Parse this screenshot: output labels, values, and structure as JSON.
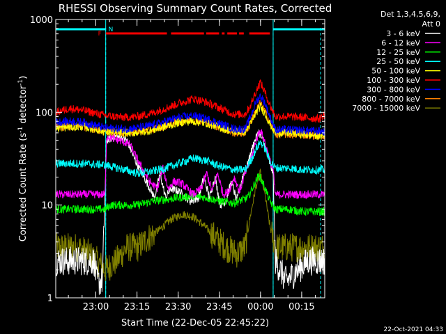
{
  "chart_data": {
    "type": "line",
    "title": "RHESSI Observing Summary Count Rates, Corrected",
    "xlabel": "Start Time (22-Dec-05 22:45:22)",
    "ylabel_main": "Corrected Count Rate (s",
    "ylabel_sup1": "-1",
    "ylabel_mid": " detector",
    "ylabel_sup2": "-1",
    "ylabel_end": ")",
    "footer_date": "22-Oct-2021 04:33",
    "legend_header1": "Det 1,3,4,5,6,9,",
    "legend_header2": "Att 0",
    "x_units": "minutes after 22:45:22",
    "xlim": [
      0,
      98
    ],
    "yscale": "log",
    "ylim": [
      1,
      1000
    ],
    "x_ticks": [
      {
        "x": 14.6,
        "label": "23:00"
      },
      {
        "x": 29.6,
        "label": "23:15"
      },
      {
        "x": 44.6,
        "label": "23:30"
      },
      {
        "x": 59.6,
        "label": "23:45"
      },
      {
        "x": 74.6,
        "label": "00:00"
      },
      {
        "x": 89.6,
        "label": "00:15"
      }
    ],
    "y_ticks": [
      {
        "y": 1,
        "label": "1"
      },
      {
        "y": 10,
        "label": "10"
      },
      {
        "y": 100,
        "label": "100"
      },
      {
        "y": 1000,
        "label": "1000"
      }
    ],
    "night_intervals": [
      [
        0,
        18.2
      ],
      [
        79.2,
        98
      ]
    ],
    "saa_markers": [
      18.2,
      79.2,
      96.5
    ],
    "flags": {
      "N": {
        "label": "N",
        "color": "#00ffff",
        "segments": [
          [
            0,
            18.2
          ],
          [
            79.2,
            98
          ]
        ]
      },
      "F": {
        "label": "F",
        "color": "#ff0000",
        "segments": [
          [
            18.2,
            40.5
          ],
          [
            42,
            54
          ],
          [
            54.8,
            59.5
          ],
          [
            60.5,
            61.5
          ],
          [
            62.5,
            66
          ],
          [
            66.8,
            68.5
          ],
          [
            70.5,
            78
          ]
        ]
      }
    },
    "series": [
      {
        "name": "3 - 6 keV",
        "color": "#ffffff",
        "points": [
          [
            0,
            2.5
          ],
          [
            14,
            2.5
          ],
          [
            15,
            1.5
          ],
          [
            17,
            1.5
          ],
          [
            18.5,
            50
          ],
          [
            22,
            55
          ],
          [
            26,
            50
          ],
          [
            29,
            30
          ],
          [
            33,
            18
          ],
          [
            36,
            12
          ],
          [
            38,
            22
          ],
          [
            40,
            12
          ],
          [
            42,
            15
          ],
          [
            45,
            14
          ],
          [
            49,
            11
          ],
          [
            52,
            12
          ],
          [
            54,
            20
          ],
          [
            56,
            12
          ],
          [
            58,
            20
          ],
          [
            60,
            10
          ],
          [
            62,
            11
          ],
          [
            64,
            18
          ],
          [
            66,
            11
          ],
          [
            68,
            20
          ],
          [
            70,
            28
          ],
          [
            72,
            45
          ],
          [
            74,
            62
          ],
          [
            76,
            45
          ],
          [
            78,
            28
          ],
          [
            79.2,
            22
          ],
          [
            80,
            2.5
          ],
          [
            84,
            1.5
          ],
          [
            88,
            2
          ],
          [
            92,
            2.5
          ],
          [
            98,
            2.5
          ]
        ]
      },
      {
        "name": "6 - 12 keV",
        "color": "#ff00ff",
        "points": [
          [
            0,
            13
          ],
          [
            18,
            13
          ],
          [
            18.5,
            55
          ],
          [
            23,
            50
          ],
          [
            27,
            45
          ],
          [
            30,
            30
          ],
          [
            34,
            18
          ],
          [
            37,
            15
          ],
          [
            39,
            25
          ],
          [
            41,
            15
          ],
          [
            43,
            18
          ],
          [
            46,
            17
          ],
          [
            50,
            13
          ],
          [
            53,
            15
          ],
          [
            55,
            22
          ],
          [
            57,
            14
          ],
          [
            59,
            22
          ],
          [
            61,
            13
          ],
          [
            63,
            14
          ],
          [
            65,
            20
          ],
          [
            67,
            14
          ],
          [
            69,
            22
          ],
          [
            71,
            30
          ],
          [
            73,
            50
          ],
          [
            74.5,
            65
          ],
          [
            76,
            50
          ],
          [
            78,
            30
          ],
          [
            79.2,
            24
          ],
          [
            80,
            13
          ],
          [
            98,
            13
          ]
        ]
      },
      {
        "name": "12 - 25 keV",
        "color": "#00ff00",
        "points": [
          [
            0,
            9
          ],
          [
            18,
            9
          ],
          [
            20,
            10
          ],
          [
            25,
            10
          ],
          [
            30,
            10
          ],
          [
            35,
            11
          ],
          [
            40,
            11.5
          ],
          [
            45,
            12
          ],
          [
            50,
            12.5
          ],
          [
            55,
            12
          ],
          [
            60,
            11
          ],
          [
            65,
            10.5
          ],
          [
            70,
            12
          ],
          [
            72,
            16
          ],
          [
            74,
            21
          ],
          [
            76,
            16
          ],
          [
            78,
            11
          ],
          [
            80,
            9
          ],
          [
            85,
            9
          ],
          [
            90,
            8.5
          ],
          [
            98,
            8.5
          ]
        ]
      },
      {
        "name": "25 - 50 keV",
        "color": "#00ffff",
        "points": [
          [
            0,
            28
          ],
          [
            10,
            28
          ],
          [
            18,
            27
          ],
          [
            25,
            24
          ],
          [
            30,
            22
          ],
          [
            35,
            23
          ],
          [
            40,
            25
          ],
          [
            45,
            28
          ],
          [
            50,
            32
          ],
          [
            55,
            30
          ],
          [
            60,
            26
          ],
          [
            65,
            24
          ],
          [
            69,
            24
          ],
          [
            71,
            30
          ],
          [
            73,
            40
          ],
          [
            74.5,
            48
          ],
          [
            76,
            42
          ],
          [
            78,
            30
          ],
          [
            80,
            25
          ],
          [
            85,
            25
          ],
          [
            90,
            24
          ],
          [
            98,
            24
          ]
        ]
      },
      {
        "name": "50 - 100 keV",
        "color": "#ffff00",
        "points": [
          [
            0,
            68
          ],
          [
            10,
            70
          ],
          [
            18,
            62
          ],
          [
            22,
            60
          ],
          [
            28,
            60
          ],
          [
            34,
            63
          ],
          [
            40,
            70
          ],
          [
            45,
            78
          ],
          [
            50,
            80
          ],
          [
            55,
            76
          ],
          [
            60,
            68
          ],
          [
            65,
            62
          ],
          [
            69,
            62
          ],
          [
            71,
            75
          ],
          [
            73,
            100
          ],
          [
            74.5,
            115
          ],
          [
            76,
            100
          ],
          [
            78,
            75
          ],
          [
            80,
            60
          ],
          [
            85,
            60
          ],
          [
            90,
            58
          ],
          [
            98,
            55
          ]
        ]
      },
      {
        "name": "100 - 300 keV",
        "color": "#ff0000",
        "points": [
          [
            0,
            100
          ],
          [
            5,
            110
          ],
          [
            10,
            105
          ],
          [
            18,
            92
          ],
          [
            25,
            88
          ],
          [
            30,
            90
          ],
          [
            35,
            98
          ],
          [
            40,
            110
          ],
          [
            45,
            125
          ],
          [
            50,
            140
          ],
          [
            55,
            128
          ],
          [
            60,
            110
          ],
          [
            65,
            95
          ],
          [
            69,
            95
          ],
          [
            71,
            120
          ],
          [
            73,
            170
          ],
          [
            74.5,
            210
          ],
          [
            76,
            170
          ],
          [
            78,
            120
          ],
          [
            80,
            90
          ],
          [
            85,
            90
          ],
          [
            90,
            88
          ],
          [
            96,
            85
          ],
          [
            98,
            95
          ]
        ]
      },
      {
        "name": "300 - 800 keV",
        "color": "#0000ff",
        "points": [
          [
            0,
            78
          ],
          [
            5,
            80
          ],
          [
            10,
            78
          ],
          [
            18,
            68
          ],
          [
            25,
            66
          ],
          [
            30,
            68
          ],
          [
            35,
            72
          ],
          [
            40,
            80
          ],
          [
            45,
            88
          ],
          [
            50,
            92
          ],
          [
            55,
            85
          ],
          [
            60,
            75
          ],
          [
            65,
            66
          ],
          [
            69,
            66
          ],
          [
            71,
            90
          ],
          [
            73,
            130
          ],
          [
            74.5,
            150
          ],
          [
            76,
            130
          ],
          [
            78,
            90
          ],
          [
            80,
            65
          ],
          [
            85,
            65
          ],
          [
            90,
            64
          ],
          [
            98,
            62
          ]
        ]
      },
      {
        "name": "800 - 7000 keV",
        "color": "#ff8000",
        "points": [
          [
            0,
            70
          ],
          [
            10,
            71
          ],
          [
            18,
            62
          ],
          [
            25,
            60
          ],
          [
            30,
            62
          ],
          [
            35,
            65
          ],
          [
            40,
            72
          ],
          [
            45,
            80
          ],
          [
            50,
            83
          ],
          [
            55,
            78
          ],
          [
            60,
            68
          ],
          [
            65,
            60
          ],
          [
            69,
            60
          ],
          [
            71,
            78
          ],
          [
            73,
            105
          ],
          [
            74.5,
            125
          ],
          [
            76,
            105
          ],
          [
            78,
            78
          ],
          [
            80,
            58
          ],
          [
            85,
            58
          ],
          [
            90,
            57
          ],
          [
            98,
            56
          ]
        ]
      },
      {
        "name": "7000 - 15000 keV",
        "color": "#808000",
        "points": [
          [
            0,
            3.5
          ],
          [
            8,
            3.5
          ],
          [
            12,
            3
          ],
          [
            15,
            2.5
          ],
          [
            18,
            2
          ],
          [
            22,
            2.5
          ],
          [
            26,
            3.5
          ],
          [
            30,
            3.5
          ],
          [
            34,
            4.5
          ],
          [
            38,
            5.5
          ],
          [
            42,
            7
          ],
          [
            46,
            8
          ],
          [
            50,
            7.5
          ],
          [
            54,
            6
          ],
          [
            58,
            4.5
          ],
          [
            62,
            3.5
          ],
          [
            66,
            3
          ],
          [
            69,
            3.5
          ],
          [
            71,
            8
          ],
          [
            73,
            16
          ],
          [
            74.5,
            22
          ],
          [
            76,
            14
          ],
          [
            78,
            6
          ],
          [
            80,
            3.5
          ],
          [
            85,
            3.5
          ],
          [
            90,
            3.5
          ],
          [
            98,
            3.5
          ]
        ]
      }
    ]
  }
}
